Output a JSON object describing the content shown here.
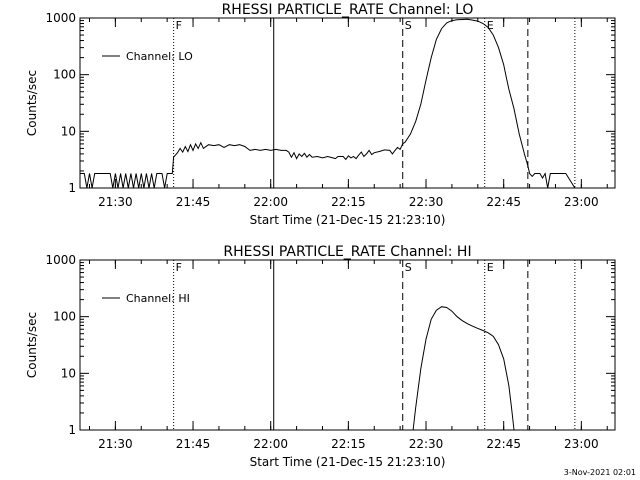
{
  "chart_data": [
    {
      "type": "line",
      "title": "RHESSI PARTICLE_RATE Channel: LO",
      "xlabel": "Start Time (21-Dec-15 21:23:10)",
      "ylabel": "Counts/sec",
      "yscale": "log",
      "ylim": [
        1,
        1000
      ],
      "xlim": [
        "21:23:10",
        "23:06:30"
      ],
      "x_ticks": [
        "21:30",
        "21:45",
        "22:00",
        "22:15",
        "22:30",
        "22:45",
        "23:00"
      ],
      "y_ticks": [
        "1",
        "10",
        "100",
        "1000"
      ],
      "legend": {
        "position": "top-left",
        "entries": [
          "Channel: LO"
        ]
      },
      "markers": [
        {
          "label": "F",
          "time": "21:41:15",
          "style": "dotted"
        },
        {
          "label": "",
          "time": "22:00:35",
          "style": "solid"
        },
        {
          "label": "S",
          "time": "22:25:30",
          "style": "dashed"
        },
        {
          "label": "E",
          "time": "22:41:20",
          "style": "dotted"
        },
        {
          "label": "",
          "time": "22:49:40",
          "style": "dashed"
        },
        {
          "label": "",
          "time": "22:58:45",
          "style": "dotted"
        }
      ],
      "series": [
        {
          "name": "Channel: LO",
          "points": [
            [
              "21:23:10",
              1.8
            ],
            [
              "21:24:00",
              1.8
            ],
            [
              "21:24:30",
              1.0
            ],
            [
              "21:25:00",
              1.8
            ],
            [
              "21:25:30",
              1.0
            ],
            [
              "21:26:00",
              1.8
            ],
            [
              "21:29:00",
              1.8
            ],
            [
              "21:29:30",
              1.0
            ],
            [
              "21:30:00",
              1.8
            ],
            [
              "21:30:30",
              1.0
            ],
            [
              "21:31:00",
              1.8
            ],
            [
              "21:31:30",
              1.0
            ],
            [
              "21:32:00",
              1.8
            ],
            [
              "21:32:30",
              1.0
            ],
            [
              "21:33:00",
              1.8
            ],
            [
              "21:33:30",
              1.0
            ],
            [
              "21:34:00",
              1.8
            ],
            [
              "21:34:30",
              1.0
            ],
            [
              "21:35:00",
              1.8
            ],
            [
              "21:35:30",
              1.0
            ],
            [
              "21:36:00",
              1.8
            ],
            [
              "21:36:30",
              1.0
            ],
            [
              "21:37:00",
              1.8
            ],
            [
              "21:37:30",
              1.0
            ],
            [
              "21:38:00",
              1.8
            ],
            [
              "21:38:30",
              1.8
            ],
            [
              "21:39:00",
              1.8
            ],
            [
              "21:39:30",
              1.0
            ],
            [
              "21:40:00",
              1.8
            ],
            [
              "21:40:30",
              1.8
            ],
            [
              "21:41:00",
              1.8
            ],
            [
              "21:41:15",
              3.5
            ],
            [
              "21:42:00",
              4.2
            ],
            [
              "21:42:30",
              5.0
            ],
            [
              "21:43:00",
              4.3
            ],
            [
              "21:43:30",
              5.4
            ],
            [
              "21:44:00",
              4.4
            ],
            [
              "21:44:30",
              5.8
            ],
            [
              "21:45:00",
              4.6
            ],
            [
              "21:45:30",
              6.0
            ],
            [
              "21:46:00",
              5.0
            ],
            [
              "21:46:30",
              6.3
            ],
            [
              "21:47:00",
              5.0
            ],
            [
              "21:48:00",
              5.8
            ],
            [
              "21:49:00",
              5.6
            ],
            [
              "21:50:00",
              5.8
            ],
            [
              "21:51:00",
              5.2
            ],
            [
              "21:52:00",
              5.8
            ],
            [
              "21:53:00",
              5.6
            ],
            [
              "21:54:00",
              5.8
            ],
            [
              "21:55:00",
              5.4
            ],
            [
              "21:56:00",
              4.6
            ],
            [
              "21:57:00",
              4.8
            ],
            [
              "21:58:00",
              4.6
            ],
            [
              "21:59:00",
              4.8
            ],
            [
              "22:00:00",
              4.6
            ],
            [
              "22:01:00",
              4.8
            ],
            [
              "22:02:00",
              4.6
            ],
            [
              "22:03:00",
              4.6
            ],
            [
              "22:03:30",
              4.3
            ],
            [
              "22:04:00",
              3.5
            ],
            [
              "22:04:30",
              4.2
            ],
            [
              "22:05:00",
              3.3
            ],
            [
              "22:05:30",
              4.0
            ],
            [
              "22:06:00",
              3.6
            ],
            [
              "22:06:30",
              4.1
            ],
            [
              "22:07:00",
              3.5
            ],
            [
              "22:07:30",
              3.9
            ],
            [
              "22:08:00",
              3.5
            ],
            [
              "22:09:00",
              3.6
            ],
            [
              "22:10:00",
              3.4
            ],
            [
              "22:11:00",
              3.6
            ],
            [
              "22:12:00",
              3.4
            ],
            [
              "22:12:30",
              3.3
            ],
            [
              "22:13:00",
              3.6
            ],
            [
              "22:14:00",
              3.6
            ],
            [
              "22:14:30",
              3.2
            ],
            [
              "22:15:00",
              3.7
            ],
            [
              "22:15:30",
              3.4
            ],
            [
              "22:16:00",
              3.6
            ],
            [
              "22:16:30",
              3.3
            ],
            [
              "22:17:00",
              3.8
            ],
            [
              "22:17:30",
              4.3
            ],
            [
              "22:18:00",
              3.6
            ],
            [
              "22:18:30",
              4.0
            ],
            [
              "22:19:00",
              4.6
            ],
            [
              "22:19:30",
              3.9
            ],
            [
              "22:20:00",
              4.2
            ],
            [
              "22:21:00",
              4.4
            ],
            [
              "22:22:00",
              4.7
            ],
            [
              "22:23:00",
              4.6
            ],
            [
              "22:23:30",
              4.0
            ],
            [
              "22:24:00",
              4.6
            ],
            [
              "22:24:30",
              5.2
            ],
            [
              "22:25:00",
              4.8
            ],
            [
              "22:25:30",
              6.0
            ],
            [
              "22:26:00",
              6.5
            ],
            [
              "22:27:00",
              9.0
            ],
            [
              "22:28:00",
              15
            ],
            [
              "22:29:00",
              30
            ],
            [
              "22:30:00",
              80
            ],
            [
              "22:31:00",
              200
            ],
            [
              "22:32:00",
              420
            ],
            [
              "22:33:00",
              650
            ],
            [
              "22:34:00",
              820
            ],
            [
              "22:35:00",
              900
            ],
            [
              "22:36:00",
              930
            ],
            [
              "22:38:00",
              950
            ],
            [
              "22:39:00",
              920
            ],
            [
              "22:40:00",
              880
            ],
            [
              "22:41:00",
              800
            ],
            [
              "22:42:00",
              680
            ],
            [
              "22:43:00",
              500
            ],
            [
              "22:44:00",
              300
            ],
            [
              "22:45:00",
              150
            ],
            [
              "22:45:30",
              90
            ],
            [
              "22:46:00",
              55
            ],
            [
              "22:47:00",
              25
            ],
            [
              "22:48:00",
              9
            ],
            [
              "22:49:00",
              4
            ],
            [
              "22:49:40",
              2.5
            ],
            [
              "22:50:00",
              1.8
            ],
            [
              "22:50:30",
              1.6
            ],
            [
              "22:51:00",
              1.8
            ],
            [
              "22:52:00",
              1.8
            ],
            [
              "22:52:30",
              1.5
            ],
            [
              "22:53:00",
              1.8
            ],
            [
              "22:53:30",
              1.0
            ],
            [
              "22:54:00",
              1.8
            ],
            [
              "22:55:00",
              1.8
            ],
            [
              "22:56:00",
              1.8
            ],
            [
              "22:57:00",
              1.8
            ],
            [
              "22:58:45",
              1.0
            ]
          ]
        }
      ]
    },
    {
      "type": "line",
      "title": "RHESSI PARTICLE_RATE Channel: HI",
      "xlabel": "Start Time (21-Dec-15 21:23:10)",
      "ylabel": "Counts/sec",
      "yscale": "log",
      "ylim": [
        1,
        1000
      ],
      "xlim": [
        "21:23:10",
        "23:06:30"
      ],
      "x_ticks": [
        "21:30",
        "21:45",
        "22:00",
        "22:15",
        "22:30",
        "22:45",
        "23:00"
      ],
      "y_ticks": [
        "1",
        "10",
        "100",
        "1000"
      ],
      "legend": {
        "position": "top-left",
        "entries": [
          "Channel: HI"
        ]
      },
      "markers": [
        {
          "label": "F",
          "time": "21:41:15",
          "style": "dotted"
        },
        {
          "label": "",
          "time": "22:00:35",
          "style": "solid"
        },
        {
          "label": "S",
          "time": "22:25:30",
          "style": "dashed"
        },
        {
          "label": "E",
          "time": "22:41:20",
          "style": "dotted"
        },
        {
          "label": "",
          "time": "22:49:40",
          "style": "dashed"
        },
        {
          "label": "",
          "time": "22:58:45",
          "style": "dotted"
        }
      ],
      "series": [
        {
          "name": "Channel: HI",
          "points": [
            [
              "22:27:30",
              1.0
            ],
            [
              "22:28:00",
              2.5
            ],
            [
              "22:29:00",
              12
            ],
            [
              "22:30:00",
              40
            ],
            [
              "22:31:00",
              90
            ],
            [
              "22:32:00",
              130
            ],
            [
              "22:33:00",
              150
            ],
            [
              "22:34:00",
              145
            ],
            [
              "22:35:00",
              125
            ],
            [
              "22:36:00",
              100
            ],
            [
              "22:37:00",
              85
            ],
            [
              "22:38:00",
              75
            ],
            [
              "22:39:00",
              68
            ],
            [
              "22:40:00",
              62
            ],
            [
              "22:41:00",
              57
            ],
            [
              "22:42:00",
              52
            ],
            [
              "22:43:00",
              45
            ],
            [
              "22:44:00",
              32
            ],
            [
              "22:45:00",
              18
            ],
            [
              "22:46:00",
              6
            ],
            [
              "22:46:30",
              2.5
            ],
            [
              "22:47:00",
              1.0
            ]
          ]
        }
      ]
    }
  ],
  "footer": {
    "timestamp": "3-Nov-2021 02:01"
  }
}
